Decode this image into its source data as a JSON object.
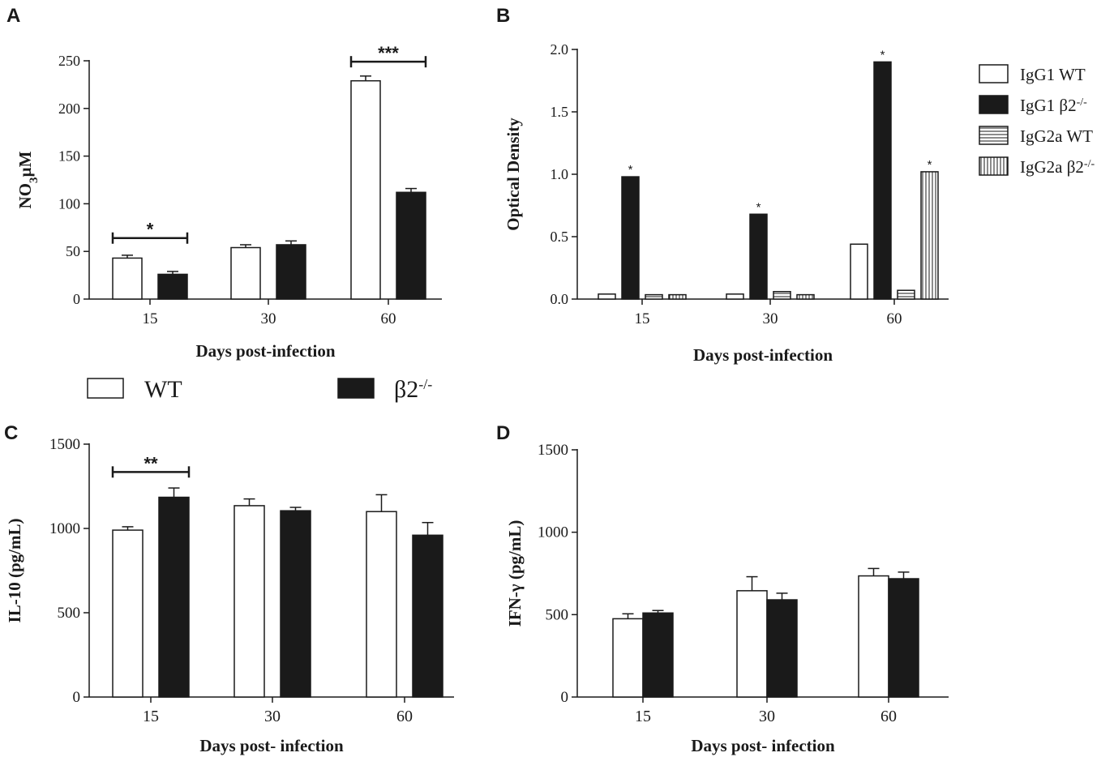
{
  "colors": {
    "ink": "#1a1a1a",
    "fill_white": "#ffffff",
    "fill_black": "#1a1a1a"
  },
  "chart_data": [
    {
      "panel": "A",
      "type": "bar",
      "xlabel": "Days post-infection",
      "ylabel": "NO",
      "ylabel_sub": "3",
      "ylabel_unit": "µM",
      "ylim": [
        0,
        250
      ],
      "yticks": [
        "0",
        "50",
        "100",
        "150",
        "200",
        "250"
      ],
      "categories": [
        "15",
        "30",
        "60"
      ],
      "series": [
        {
          "name": "WT",
          "style": "white",
          "values": [
            43,
            54,
            229
          ],
          "errors": [
            3,
            3,
            5
          ]
        },
        {
          "name": "β2-/-",
          "style": "black",
          "values": [
            26,
            57,
            112
          ],
          "errors": [
            3,
            4,
            4
          ]
        }
      ],
      "significance": [
        {
          "category": "15",
          "label": "*",
          "y": 64
        },
        {
          "category": "60",
          "label": "***",
          "y": 249
        }
      ]
    },
    {
      "panel": "B",
      "type": "bar",
      "xlabel": "Days post-infection",
      "ylabel": "Optical Density",
      "ylim": [
        0,
        2.0
      ],
      "yticks": [
        "0.0",
        "0.5",
        "1.0",
        "1.5",
        "2.0"
      ],
      "categories": [
        "15",
        "30",
        "60"
      ],
      "series": [
        {
          "name": "IgG1 WT",
          "style": "white",
          "values": [
            0.04,
            0.04,
            0.44
          ]
        },
        {
          "name": "IgG1 β2-/-",
          "style": "black",
          "values": [
            0.98,
            0.68,
            1.9
          ]
        },
        {
          "name": "IgG2a WT",
          "style": "hlines",
          "values": [
            0.035,
            0.06,
            0.07
          ]
        },
        {
          "name": "IgG2a β2-/-",
          "style": "vlines",
          "values": [
            0.035,
            0.035,
            1.02
          ]
        }
      ],
      "stars": [
        {
          "category": "15",
          "series": 1,
          "label": "*"
        },
        {
          "category": "30",
          "series": 1,
          "label": "*"
        },
        {
          "category": "60",
          "series": 1,
          "label": "*"
        },
        {
          "category": "60",
          "series": 3,
          "label": "*"
        }
      ],
      "legend": [
        {
          "base": "IgG1 WT",
          "sup": "",
          "style": "white"
        },
        {
          "base": "IgG1 β2",
          "sup": "-/-",
          "style": "black"
        },
        {
          "base": "IgG2a WT",
          "sup": "",
          "style": "hlines"
        },
        {
          "base": "IgG2a β2",
          "sup": "-/-",
          "style": "vlines"
        }
      ]
    },
    {
      "panel": "C",
      "type": "bar",
      "xlabel": "Days post- infection",
      "ylabel": "IL-10 (pg/mL)",
      "ylim": [
        0,
        1500
      ],
      "yticks": [
        "0",
        "500",
        "1000",
        "1500"
      ],
      "categories": [
        "15",
        "30",
        "60"
      ],
      "series": [
        {
          "name": "WT",
          "style": "white",
          "values": [
            990,
            1135,
            1100
          ],
          "errors": [
            20,
            40,
            100
          ]
        },
        {
          "name": "β2-/-",
          "style": "black",
          "values": [
            1185,
            1105,
            960
          ],
          "errors": [
            55,
            20,
            75
          ]
        }
      ],
      "significance": [
        {
          "category": "15",
          "label": "**",
          "y": 1335
        }
      ]
    },
    {
      "panel": "D",
      "type": "bar",
      "xlabel": "Days post- infection",
      "ylabel": "IFN-γ (pg/mL)",
      "ylim": [
        0,
        1500
      ],
      "yticks": [
        "0",
        "500",
        "1000",
        "1500"
      ],
      "categories": [
        "15",
        "30",
        "60"
      ],
      "series": [
        {
          "name": "WT",
          "style": "white",
          "values": [
            475,
            645,
            735
          ],
          "errors": [
            30,
            85,
            45
          ]
        },
        {
          "name": "β2-/-",
          "style": "black",
          "values": [
            510,
            590,
            718
          ],
          "errors": [
            15,
            40,
            40
          ]
        }
      ]
    }
  ],
  "shared_legend": [
    {
      "base": "WT",
      "sup": "",
      "style": "white"
    },
    {
      "base": "β2",
      "sup": "-/-",
      "style": "black"
    }
  ]
}
